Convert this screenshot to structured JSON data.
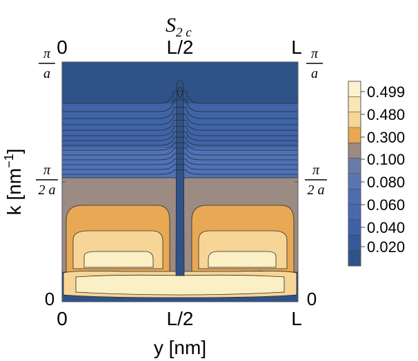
{
  "chart_data": {
    "type": "heatmap",
    "subtype": "filled-contour",
    "title": {
      "main": "S",
      "sub": "2 c"
    },
    "xlabel": "y [nm]",
    "ylabel": {
      "text": "k [nm",
      "sup": "−1",
      "close": "]"
    },
    "x_ticks": [
      {
        "value": 0,
        "label": "0"
      },
      {
        "value": 0.5,
        "label": "L/2"
      },
      {
        "value": 1,
        "label": "L"
      }
    ],
    "y_ticks": [
      {
        "value": 0,
        "label": "0"
      },
      {
        "value": 0.5,
        "num": "π",
        "den": "2 a"
      },
      {
        "value": 1,
        "num": "π",
        "den": "a"
      }
    ],
    "xlim": [
      0,
      1
    ],
    "ylim": [
      0,
      1
    ],
    "colorbar": {
      "labels": [
        "0.499",
        "0.480",
        "0.300",
        "0.100",
        "0.080",
        "0.060",
        "0.040",
        "0.020"
      ],
      "colors": [
        "#fcf2cf",
        "#f9e6b3",
        "#f6d597",
        "#e9a853",
        "#9b8b82",
        "#6b7ba8",
        "#5a75b4",
        "#4e6db1",
        "#4a68ae",
        "#3d62a8",
        "#365a99",
        "#2f5289"
      ]
    },
    "regions": {
      "dark_blue": "#2f5289",
      "mid_blue": "#4064a8",
      "light_blue": "#4f72b8",
      "gray": "#9b8b82",
      "orange": "#e9a853",
      "light_orange": "#f6d597",
      "cream": "#fbefc5",
      "contour_line": "#2a2a2a"
    }
  }
}
